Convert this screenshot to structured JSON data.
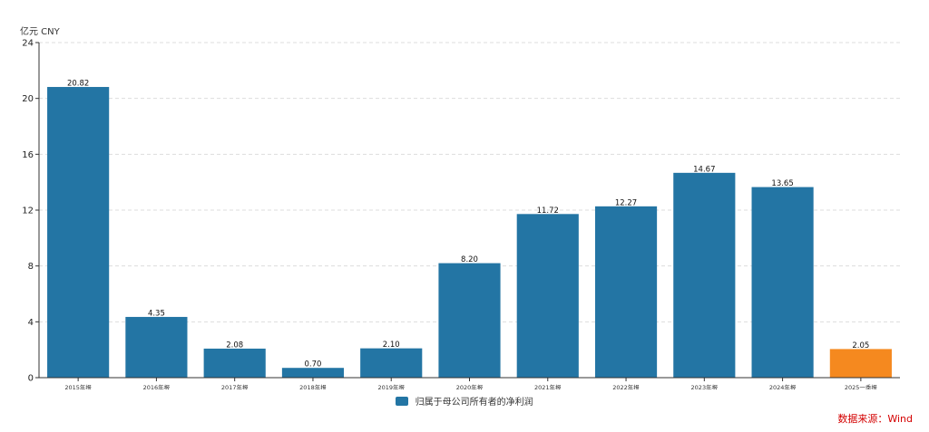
{
  "chart_data": {
    "type": "bar",
    "unit_label": "亿元 CNY",
    "categories": [
      "2015年报",
      "2016年报",
      "2017年报",
      "2018年报",
      "2019年报",
      "2020年报",
      "2021年报",
      "2022年报",
      "2023年报",
      "2024年报",
      "2025一季报"
    ],
    "series": [
      {
        "name": "归属于母公司所有者的净利润",
        "values": [
          20.82,
          4.35,
          2.08,
          0.7,
          2.1,
          8.2,
          11.72,
          12.27,
          14.67,
          13.65,
          2.05
        ],
        "labels": [
          "20.82",
          "4.35",
          "2.08",
          "0.70",
          "2.10",
          "8.20",
          "11.72",
          "12.27",
          "14.67",
          "13.65",
          "2.05"
        ],
        "color": "#2375a4",
        "highlight_color": "#f5891f",
        "highlight_index": 10
      }
    ],
    "ylim": [
      0,
      24
    ],
    "yticks": [
      "0",
      "4",
      "8",
      "12",
      "16",
      "20",
      "24"
    ],
    "grid": true,
    "legend_position": "bottom-center",
    "source": "数据来源：Wind"
  }
}
